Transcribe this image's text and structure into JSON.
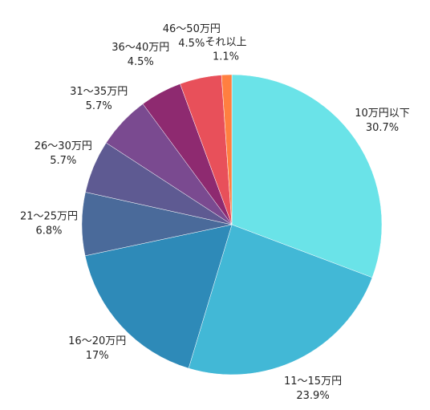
{
  "chart_data": {
    "type": "pie",
    "categories": [
      "10万円以下",
      "11〜15万円",
      "16〜20万円",
      "21〜25万円",
      "26〜30万円",
      "31〜35万円",
      "36〜40万円",
      "46〜50万円",
      "それ以上"
    ],
    "values": [
      30.7,
      23.9,
      17,
      6.8,
      5.7,
      5.7,
      4.5,
      4.5,
      1.1
    ],
    "value_labels": [
      "30.7%",
      "23.9%",
      "17%",
      "6.8%",
      "5.7%",
      "5.7%",
      "4.5%",
      "4.5%",
      "1.1%"
    ],
    "colors": [
      "#6ae3e8",
      "#42b8d6",
      "#2e8ab8",
      "#4a6a9a",
      "#5e5a92",
      "#7a4a90",
      "#8e2a70",
      "#e8505a",
      "#ff7f40"
    ]
  }
}
